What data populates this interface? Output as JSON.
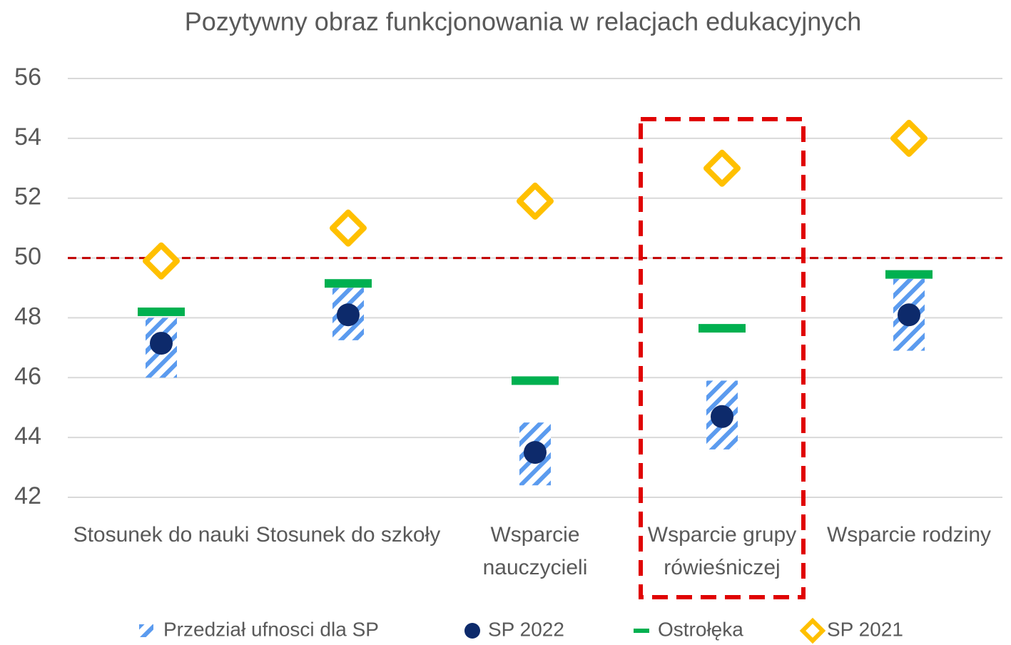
{
  "chart_data": {
    "type": "dot_plot",
    "title": "Pozytywny obraz funkcjonowania w relacjach edukacyjnych",
    "categories": [
      "Stosunek do nauki",
      "Stosunek do szkoły",
      "Wsparcie nauczycieli",
      "Wsparcie grupy rówieśniczej",
      "Wsparcie rodziny"
    ],
    "series": [
      {
        "name": "Przedział ufnosci dla SP",
        "kind": "interval",
        "color": "#5b9bef",
        "values": [
          [
            46.0,
            48.0
          ],
          [
            47.25,
            49.0
          ],
          [
            42.4,
            44.5
          ],
          [
            43.6,
            45.9
          ],
          [
            46.9,
            49.3
          ]
        ]
      },
      {
        "name": "SP 2022",
        "kind": "dot",
        "color": "#0d2a6b",
        "values": [
          47.15,
          48.1,
          43.5,
          44.7,
          48.1
        ]
      },
      {
        "name": "Ostrołęka",
        "kind": "dash",
        "color": "#00b050",
        "values": [
          48.2,
          49.15,
          45.9,
          47.65,
          49.45
        ]
      },
      {
        "name": "SP 2021",
        "kind": "diamond",
        "color": "#ffc000",
        "values": [
          49.9,
          51.0,
          51.9,
          53.0,
          54.0
        ]
      }
    ],
    "reference_line": 50,
    "ylim": [
      42,
      56
    ],
    "yticks": [
      42,
      44,
      46,
      48,
      50,
      52,
      54,
      56
    ],
    "grid": true,
    "legend": "bottom"
  }
}
